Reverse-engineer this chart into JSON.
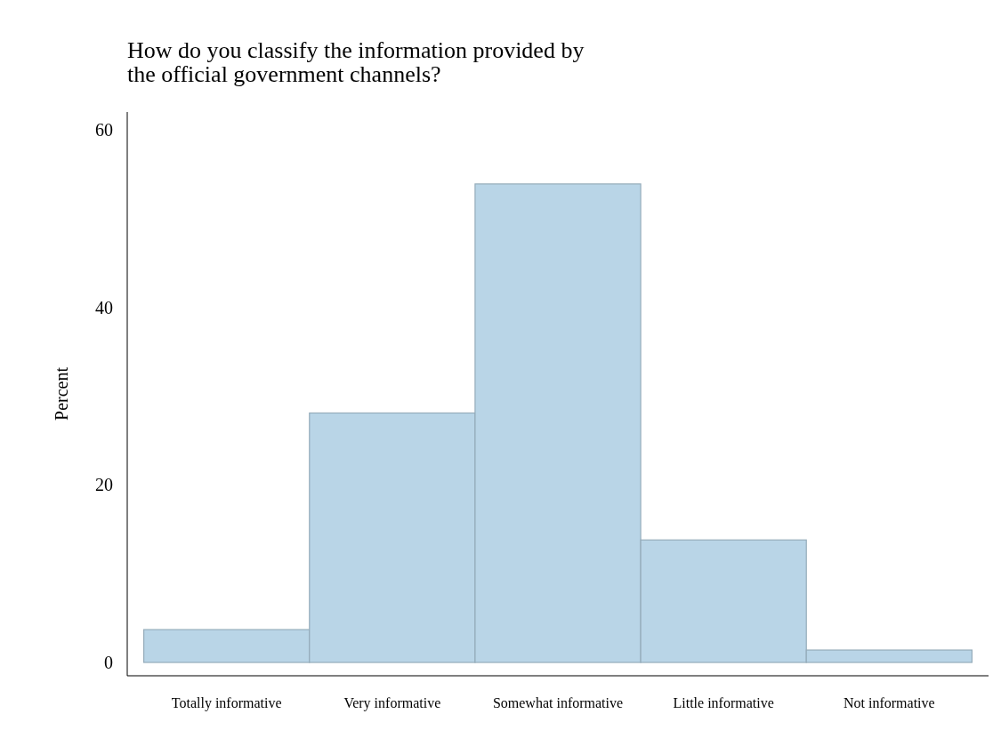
{
  "chart_data": {
    "type": "bar",
    "title": "How do you classify the information provided by the official government channels?",
    "ylabel": "Percent",
    "categories": [
      "Totally informative",
      "Very informative",
      "Somewhat informative",
      "Little informative",
      "Not informative"
    ],
    "values": [
      3.7,
      28.1,
      53.9,
      13.8,
      1.4
    ],
    "color": "#b9d5e7",
    "ylim": [
      -1.5,
      62
    ],
    "yticks": [
      0,
      20,
      40,
      60
    ],
    "grid": false
  }
}
